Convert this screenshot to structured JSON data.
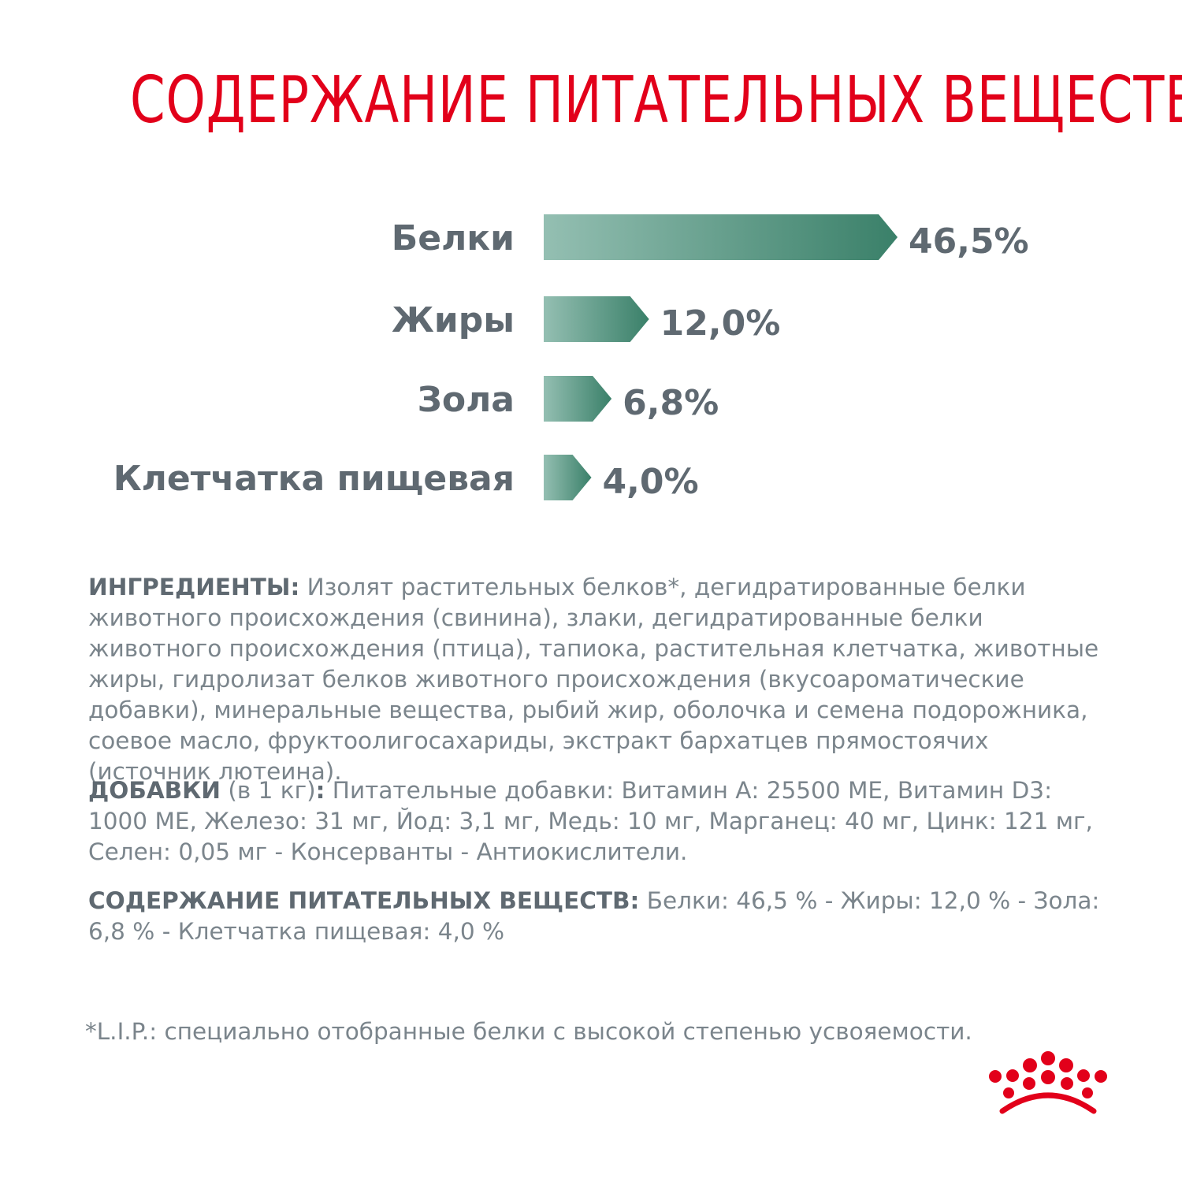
{
  "title": "СОДЕРЖАНИЕ ПИТАТЕЛЬНЫХ ВЕЩЕСТВ",
  "chart_data": {
    "type": "bar",
    "orientation": "horizontal",
    "categories": [
      "Белки",
      "Жиры",
      "Зола",
      "Клетчатка пищевая"
    ],
    "values": [
      46.5,
      12.0,
      6.8,
      4.0
    ],
    "value_labels": [
      "46,5%",
      "12,0%",
      "6,8%",
      "4,0%"
    ],
    "unit": "%",
    "grid": false,
    "colors": {
      "bar_start": "#94bfb2",
      "bar_end": "#3a8069",
      "text": "#5f6971"
    }
  },
  "ingredients": {
    "label": "ИНГРЕДИЕНТЫ:",
    "text": " Изолят растительных белков*, дегидратированные белки животного происхождения (свинина), злаки, дегидратированные белки животного происхождения (птица), тапиока, растительная клетчатка, животные жиры, гидролизат белков животного происхождения (вкусоароматические добавки), минеральные вещества, рыбий жир, оболочка и семена подорожника, соевое масло, фруктоолигосахариды, экстракт бархатцев прямостоячих (источник лютеина)."
  },
  "additives": {
    "label": "ДОБАВКИ",
    "unit_note": " (в 1 кг)",
    "colon": ":",
    "text": " Питательные добавки: Витамин А: 25500 МЕ, Витамин D3: 1000 МЕ, Железо: 31 мг, Йод: 3,1 мг, Медь: 10 мг, Марганец: 40 мг, Цинк: 121 мг, Селен: 0,05 мг - Консерванты - Антиокислители."
  },
  "nutrients": {
    "label": "СОДЕРЖАНИЕ ПИТАТЕЛЬНЫХ ВЕЩЕСТВ:",
    "text": " Белки: 46,5 % - Жиры: 12,0 % - Зола: 6,8 % - Клетчатка пищевая: 4,0 %"
  },
  "footnote": "*L.I.P.: специально отобранные белки с высокой степенью усвояемости.",
  "brand": {
    "logo_icon": "crown-icon",
    "color": "#e2001a"
  }
}
